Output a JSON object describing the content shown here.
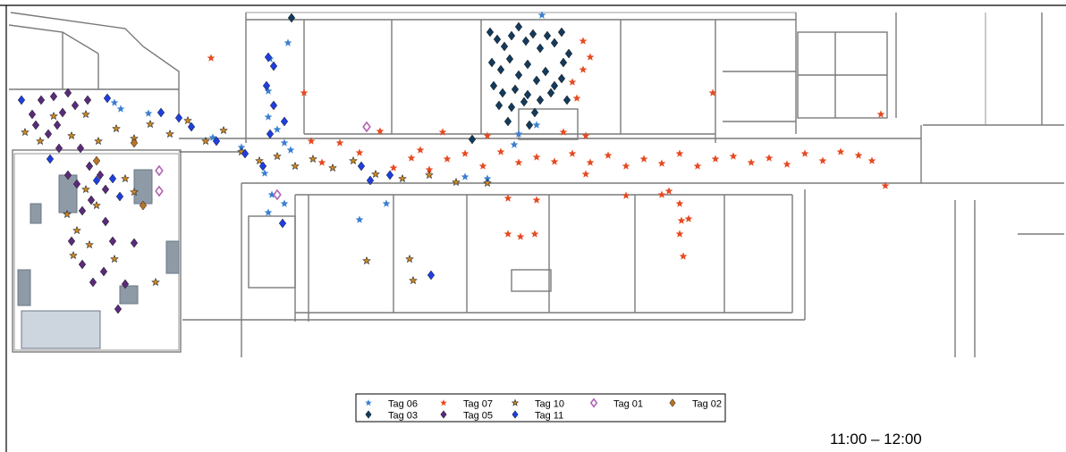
{
  "chart_data": {
    "type": "scatter",
    "title": "",
    "xlabel": "",
    "ylabel": "",
    "background": "floor plan",
    "legend_placement": "bottom-center",
    "grid": false,
    "series": [
      {
        "name": "Tag 06",
        "marker": "star",
        "color": "#3b7fd1",
        "points": [
          [
            128,
            115
          ],
          [
            135,
            122
          ],
          [
            166,
            127
          ],
          [
            238,
            154
          ],
          [
            270,
            165
          ],
          [
            300,
            131
          ],
          [
            310,
            145
          ],
          [
            318,
            160
          ],
          [
            322,
            48
          ],
          [
            325,
            168
          ],
          [
            302,
            66
          ],
          [
            300,
            102
          ],
          [
            296,
            194
          ],
          [
            304,
            218
          ],
          [
            300,
            238
          ],
          [
            318,
            228
          ],
          [
            402,
            246
          ],
          [
            432,
            228
          ],
          [
            520,
            198
          ],
          [
            575,
            162
          ],
          [
            580,
            150
          ],
          [
            600,
            140
          ],
          [
            606,
            17
          ],
          [
            545,
            200
          ]
        ]
      },
      {
        "name": "Tag 07",
        "marker": "star",
        "color": "#e64a22",
        "points": [
          [
            236,
            65
          ],
          [
            340,
            104
          ],
          [
            348,
            158
          ],
          [
            360,
            182
          ],
          [
            380,
            160
          ],
          [
            402,
            171
          ],
          [
            425,
            147
          ],
          [
            440,
            188
          ],
          [
            460,
            177
          ],
          [
            480,
            190
          ],
          [
            500,
            178
          ],
          [
            520,
            172
          ],
          [
            540,
            186
          ],
          [
            560,
            170
          ],
          [
            580,
            182
          ],
          [
            600,
            176
          ],
          [
            620,
            181
          ],
          [
            640,
            172
          ],
          [
            660,
            182
          ],
          [
            680,
            174
          ],
          [
            700,
            186
          ],
          [
            720,
            178
          ],
          [
            740,
            183
          ],
          [
            760,
            172
          ],
          [
            780,
            186
          ],
          [
            800,
            178
          ],
          [
            820,
            175
          ],
          [
            840,
            182
          ],
          [
            860,
            177
          ],
          [
            880,
            184
          ],
          [
            900,
            172
          ],
          [
            920,
            180
          ],
          [
            940,
            170
          ],
          [
            960,
            174
          ],
          [
            975,
            180
          ],
          [
            990,
            208
          ],
          [
            985,
            128
          ],
          [
            652,
            46
          ],
          [
            660,
            64
          ],
          [
            652,
            78
          ],
          [
            640,
            92
          ],
          [
            645,
            110
          ],
          [
            630,
            148
          ],
          [
            655,
            152
          ],
          [
            568,
            262
          ],
          [
            582,
            265
          ],
          [
            598,
            262
          ],
          [
            568,
            222
          ],
          [
            600,
            224
          ],
          [
            655,
            195
          ],
          [
            700,
            219
          ],
          [
            740,
            218
          ],
          [
            760,
            228
          ],
          [
            762,
            247
          ],
          [
            760,
            262
          ],
          [
            764,
            287
          ],
          [
            770,
            245
          ],
          [
            748,
            214
          ],
          [
            797,
            104
          ],
          [
            545,
            152
          ],
          [
            495,
            148
          ],
          [
            470,
            168
          ]
        ]
      },
      {
        "name": "Tag 10",
        "marker": "asterisk",
        "color": "#d28a1e",
        "points": [
          [
            28,
            148
          ],
          [
            45,
            158
          ],
          [
            60,
            130
          ],
          [
            80,
            152
          ],
          [
            96,
            128
          ],
          [
            110,
            158
          ],
          [
            130,
            144
          ],
          [
            150,
            155
          ],
          [
            168,
            139
          ],
          [
            190,
            150
          ],
          [
            210,
            135
          ],
          [
            230,
            158
          ],
          [
            250,
            146
          ],
          [
            270,
            170
          ],
          [
            290,
            180
          ],
          [
            310,
            175
          ],
          [
            330,
            186
          ],
          [
            350,
            178
          ],
          [
            372,
            188
          ],
          [
            395,
            180
          ],
          [
            420,
            195
          ],
          [
            450,
            200
          ],
          [
            480,
            196
          ],
          [
            510,
            204
          ],
          [
            545,
            205
          ],
          [
            75,
            240
          ],
          [
            86,
            258
          ],
          [
            100,
            274
          ],
          [
            82,
            286
          ],
          [
            128,
            290
          ],
          [
            174,
            316
          ],
          [
            108,
            230
          ],
          [
            96,
            212
          ],
          [
            458,
            290
          ],
          [
            462,
            314
          ],
          [
            410,
            292
          ],
          [
            150,
            215
          ],
          [
            140,
            200
          ]
        ]
      },
      {
        "name": "Tag 01",
        "marker": "diamond-open",
        "color": "#b265b5",
        "points": [
          [
            178,
            191
          ],
          [
            178,
            214
          ],
          [
            410,
            142
          ],
          [
            310,
            218
          ]
        ]
      },
      {
        "name": "Tag 02",
        "marker": "diamond",
        "color": "#b8732a",
        "points": [
          [
            160,
            230
          ],
          [
            108,
            180
          ],
          [
            150,
            160
          ]
        ]
      },
      {
        "name": "Tag 03",
        "marker": "diamond",
        "color": "#143a5c",
        "points": [
          [
            548,
            36
          ],
          [
            556,
            44
          ],
          [
            564,
            52
          ],
          [
            572,
            40
          ],
          [
            580,
            30
          ],
          [
            588,
            46
          ],
          [
            596,
            38
          ],
          [
            604,
            54
          ],
          [
            612,
            40
          ],
          [
            620,
            48
          ],
          [
            628,
            36
          ],
          [
            636,
            60
          ],
          [
            550,
            70
          ],
          [
            560,
            78
          ],
          [
            570,
            66
          ],
          [
            580,
            84
          ],
          [
            590,
            72
          ],
          [
            600,
            90
          ],
          [
            610,
            80
          ],
          [
            620,
            96
          ],
          [
            630,
            70
          ],
          [
            552,
            96
          ],
          [
            562,
            104
          ],
          [
            576,
            100
          ],
          [
            590,
            106
          ],
          [
            604,
            112
          ],
          [
            616,
            104
          ],
          [
            628,
            88
          ],
          [
            634,
            112
          ],
          [
            558,
            118
          ],
          [
            572,
            120
          ],
          [
            586,
            114
          ],
          [
            598,
            126
          ],
          [
            568,
            136
          ],
          [
            592,
            140
          ],
          [
            326,
            20
          ],
          [
            528,
            156
          ]
        ]
      },
      {
        "name": "Tag 05",
        "marker": "diamond",
        "color": "#5a2b7a",
        "points": [
          [
            46,
            112
          ],
          [
            60,
            108
          ],
          [
            70,
            126
          ],
          [
            84,
            118
          ],
          [
            98,
            112
          ],
          [
            40,
            140
          ],
          [
            54,
            150
          ],
          [
            66,
            166
          ],
          [
            90,
            166
          ],
          [
            100,
            186
          ],
          [
            112,
            196
          ],
          [
            118,
            212
          ],
          [
            86,
            206
          ],
          [
            76,
            196
          ],
          [
            102,
            224
          ],
          [
            92,
            236
          ],
          [
            80,
            270
          ],
          [
            92,
            296
          ],
          [
            116,
            304
          ],
          [
            104,
            316
          ],
          [
            140,
            318
          ],
          [
            132,
            346
          ],
          [
            150,
            272
          ],
          [
            126,
            270
          ],
          [
            118,
            248
          ],
          [
            36,
            128
          ],
          [
            76,
            104
          ],
          [
            64,
            140
          ]
        ]
      },
      {
        "name": "Tag 11",
        "marker": "diamond",
        "color": "#1f3ee0",
        "points": [
          [
            24,
            112
          ],
          [
            120,
            110
          ],
          [
            180,
            126
          ],
          [
            200,
            132
          ],
          [
            214,
            142
          ],
          [
            242,
            158
          ],
          [
            274,
            172
          ],
          [
            294,
            186
          ],
          [
            300,
            64
          ],
          [
            306,
            74
          ],
          [
            298,
            96
          ],
          [
            306,
            118
          ],
          [
            318,
            136
          ],
          [
            302,
            150
          ],
          [
            126,
            200
          ],
          [
            134,
            220
          ],
          [
            108,
            202
          ],
          [
            56,
            178
          ],
          [
            436,
            196
          ],
          [
            414,
            202
          ],
          [
            482,
            308
          ],
          [
            316,
            250
          ],
          [
            404,
            186
          ]
        ]
      }
    ]
  },
  "legend": {
    "items": [
      {
        "label": "Tag 06",
        "symbol": "★",
        "color": "#3b7fd1"
      },
      {
        "label": "Tag 07",
        "symbol": "★",
        "color": "#e64a22"
      },
      {
        "label": "Tag 10",
        "symbol": "✱",
        "color": "#d28a1e"
      },
      {
        "label": "Tag 01",
        "symbol": "◇",
        "color": "#b265b5"
      },
      {
        "label": "Tag 02",
        "symbol": "◆",
        "color": "#b8732a"
      },
      {
        "label": "Tag 03",
        "symbol": "◆",
        "color": "#143a5c"
      },
      {
        "label": "Tag 05",
        "symbol": "◆",
        "color": "#5a2b7a"
      },
      {
        "label": "Tag 11",
        "symbol": "◆",
        "color": "#1f3ee0"
      }
    ]
  },
  "time_label": "11:00 – 12:00",
  "colors": {
    "plan_line": "#7a7a7a",
    "plan_fill": "#ffffff",
    "furniture": "#8e9aa6",
    "frame": "#000000"
  }
}
